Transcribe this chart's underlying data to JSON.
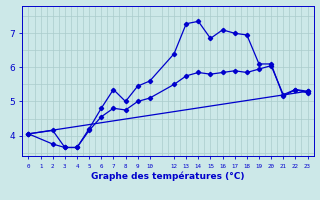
{
  "xlabel": "Graphe des températures (°C)",
  "background_color": "#cce8e8",
  "grid_color_major": "#aacccc",
  "grid_color_minor": "#bbdddd",
  "line_color": "#0000cc",
  "ylim": [
    3.4,
    7.8
  ],
  "xlim": [
    -0.5,
    23.5
  ],
  "y_ticks": [
    4,
    5,
    6,
    7
  ],
  "x_ticks_pos": [
    0,
    1,
    2,
    3,
    4,
    5,
    6,
    7,
    8,
    9,
    10,
    12,
    13,
    14,
    15,
    16,
    17,
    18,
    19,
    20,
    21,
    22,
    23
  ],
  "x_tick_labels": [
    "0",
    "1",
    "2",
    "3",
    "4",
    "5",
    "6",
    "7",
    "8",
    "9",
    "10",
    "12",
    "13",
    "14",
    "15",
    "16",
    "17",
    "18",
    "19",
    "20",
    "21",
    "22",
    "23"
  ],
  "curve1_x": [
    0,
    2,
    3,
    4,
    5,
    6,
    7,
    8,
    9,
    10,
    12,
    13,
    14,
    15,
    16,
    17,
    18,
    19,
    20,
    21,
    22,
    23
  ],
  "curve1_y": [
    4.05,
    4.15,
    3.65,
    3.65,
    4.2,
    4.8,
    5.35,
    5.0,
    5.45,
    5.6,
    6.4,
    7.28,
    7.35,
    6.85,
    7.1,
    7.0,
    6.95,
    6.1,
    6.1,
    5.15,
    5.35,
    5.25
  ],
  "curve2_x": [
    0,
    2,
    3,
    4,
    5,
    6,
    7,
    8,
    9,
    10,
    12,
    13,
    14,
    15,
    16,
    17,
    18,
    19,
    20,
    21,
    22,
    23
  ],
  "curve2_y": [
    4.05,
    3.75,
    3.65,
    3.65,
    4.15,
    4.55,
    4.8,
    4.75,
    5.0,
    5.1,
    5.5,
    5.75,
    5.85,
    5.8,
    5.85,
    5.9,
    5.85,
    5.95,
    6.05,
    5.2,
    5.35,
    5.3
  ],
  "curve3_x": [
    0,
    23
  ],
  "curve3_y": [
    4.05,
    5.3
  ],
  "lw": 0.9,
  "ms": 2.2
}
